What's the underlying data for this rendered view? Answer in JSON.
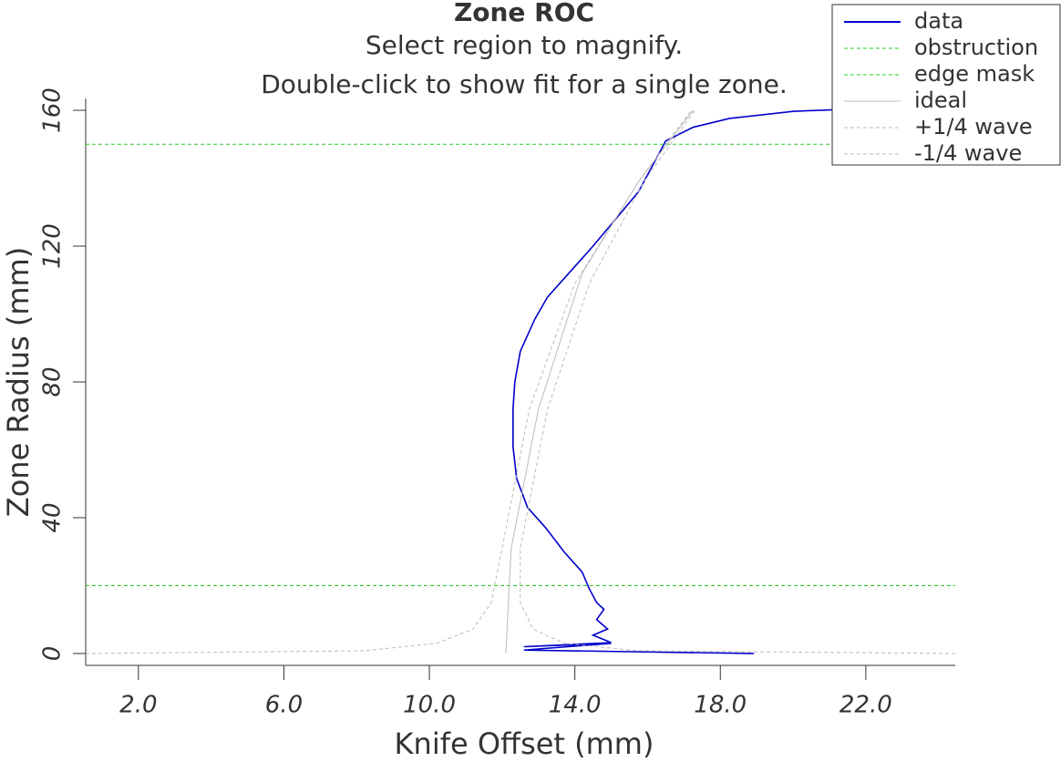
{
  "chart_data": {
    "type": "line",
    "title": "Zone ROC",
    "subtitle": [
      "Select region to magnify.",
      "Double-click to show fit for a single zone."
    ],
    "x_label": "Knife Offset (mm)",
    "y_label": "Zone Radius (mm)",
    "xlim": [
      0.55,
      24.46
    ],
    "ylim": [
      -3.5,
      163.5
    ],
    "xticks": [
      {
        "value": 2,
        "label": "2.0"
      },
      {
        "value": 6,
        "label": "6.0"
      },
      {
        "value": 10,
        "label": "10.0"
      },
      {
        "value": 14,
        "label": "14.0"
      },
      {
        "value": 18,
        "label": "18.0"
      },
      {
        "value": 22,
        "label": "22.0"
      }
    ],
    "yticks": [
      0,
      40,
      80,
      120,
      160
    ],
    "legend": "top-right",
    "series": [
      {
        "name": "data",
        "color": "#0000cc",
        "dash": false,
        "x": [
          18.92,
          12.6,
          15.0,
          12.6,
          15.0,
          14.5,
          14.9,
          14.6,
          14.8,
          14.6,
          14.4,
          14.2,
          13.7,
          13.2,
          12.7,
          12.4,
          12.3,
          12.3,
          12.35,
          12.5,
          12.9,
          13.25,
          14.5,
          15.75,
          16.5,
          17.25,
          18.25,
          20.0,
          21.4
        ],
        "values": [
          0,
          1,
          3,
          2,
          3.2,
          5.4,
          7.2,
          10,
          13,
          15,
          19,
          24,
          30,
          37,
          43,
          51.5,
          61,
          72,
          80,
          89,
          98.5,
          105,
          120,
          136,
          151,
          155,
          157.6,
          159.7,
          160.3
        ]
      },
      {
        "name": "obstruction",
        "color": "#22cc22",
        "dash": true,
        "x": [
          0.55,
          24.46
        ],
        "values": [
          20,
          20
        ]
      },
      {
        "name": "edge mask",
        "color": "#22cc22",
        "dash": true,
        "x": [
          0.55,
          24.46
        ],
        "values": [
          150,
          150
        ]
      },
      {
        "name": "ideal",
        "color": "#bbbbbb",
        "dash": false,
        "x": [
          12.1,
          12.25,
          13.0,
          14.2,
          15.75,
          17.25
        ],
        "values": [
          0,
          31,
          72,
          112,
          139,
          160
        ]
      },
      {
        "name": "+1/4 wave",
        "color": "#bbbbbb",
        "dash": true,
        "x": [
          0.55,
          8.2,
          10.2,
          11.2,
          11.7,
          12.0,
          12.75,
          14.0,
          15.75,
          17.2
        ],
        "values": [
          0,
          0.8,
          3,
          7.2,
          15,
          31,
          72,
          109,
          139,
          160
        ]
      },
      {
        "name": "-1/4 wave",
        "color": "#bbbbbb",
        "dash": true,
        "x": [
          24.46,
          15.75,
          13.7,
          12.85,
          12.5,
          12.5,
          13.25,
          14.4,
          15.9,
          17.3
        ],
        "values": [
          0,
          0.8,
          3,
          7.2,
          15,
          31,
          72,
          109,
          139,
          160
        ]
      }
    ]
  }
}
